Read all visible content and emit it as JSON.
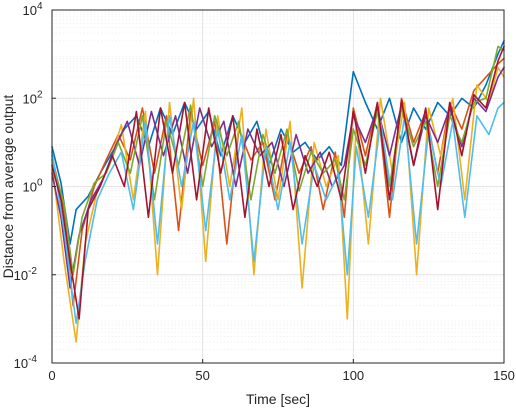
{
  "chart_data": {
    "type": "line",
    "title": "",
    "xlabel": "Time [sec]",
    "ylabel": "Distance from average output",
    "xlim": [
      0,
      150
    ],
    "ylim": [
      0.0001,
      10000
    ],
    "y_scale": "log",
    "grid": true,
    "minor_grid": true,
    "x_ticks": [
      0,
      50,
      100,
      150
    ],
    "x_tick_labels": [
      "0",
      "50",
      "100",
      "150"
    ],
    "y_ticks": [
      0.0001,
      0.01,
      1,
      100,
      10000
    ],
    "y_tick_labels": [
      {
        "base": "10",
        "exp": "-4"
      },
      {
        "base": "10",
        "exp": "-2"
      },
      {
        "base": "10",
        "exp": "0"
      },
      {
        "base": "10",
        "exp": "2"
      },
      {
        "base": "10",
        "exp": "4"
      }
    ],
    "series": [
      {
        "color": "#0072BD",
        "values": [
          [
            0,
            8
          ],
          [
            3,
            1.2
          ],
          [
            6,
            0.05
          ],
          [
            8,
            0.3
          ],
          [
            12,
            0.6
          ],
          [
            16,
            2
          ],
          [
            20,
            6
          ],
          [
            24,
            20
          ],
          [
            28,
            40
          ],
          [
            32,
            8
          ],
          [
            36,
            60
          ],
          [
            40,
            15
          ],
          [
            44,
            80
          ],
          [
            48,
            20
          ],
          [
            52,
            50
          ],
          [
            56,
            5
          ],
          [
            60,
            40
          ],
          [
            64,
            10
          ],
          [
            68,
            30
          ],
          [
            72,
            3
          ],
          [
            76,
            20
          ],
          [
            80,
            6
          ],
          [
            84,
            10
          ],
          [
            88,
            4
          ],
          [
            92,
            8
          ],
          [
            96,
            3
          ],
          [
            100,
            400
          ],
          [
            104,
            80
          ],
          [
            108,
            20
          ],
          [
            112,
            100
          ],
          [
            116,
            10
          ],
          [
            120,
            60
          ],
          [
            124,
            20
          ],
          [
            128,
            80
          ],
          [
            132,
            40
          ],
          [
            136,
            100
          ],
          [
            140,
            60
          ],
          [
            144,
            200
          ],
          [
            148,
            1000
          ],
          [
            150,
            2000
          ]
        ]
      },
      {
        "color": "#D95319",
        "values": [
          [
            0,
            5
          ],
          [
            4,
            0.3
          ],
          [
            7,
            0.002
          ],
          [
            10,
            0.1
          ],
          [
            14,
            1
          ],
          [
            18,
            4
          ],
          [
            22,
            15
          ],
          [
            26,
            4
          ],
          [
            30,
            60
          ],
          [
            34,
            2
          ],
          [
            38,
            40
          ],
          [
            42,
            0.1
          ],
          [
            46,
            50
          ],
          [
            50,
            3
          ],
          [
            54,
            30
          ],
          [
            58,
            0.05
          ],
          [
            62,
            20
          ],
          [
            66,
            4
          ],
          [
            70,
            10
          ],
          [
            74,
            0.5
          ],
          [
            78,
            15
          ],
          [
            82,
            2
          ],
          [
            86,
            8
          ],
          [
            90,
            0.3
          ],
          [
            94,
            6
          ],
          [
            97,
            0.2
          ],
          [
            100,
            60
          ],
          [
            104,
            5
          ],
          [
            108,
            80
          ],
          [
            112,
            0.2
          ],
          [
            116,
            100
          ],
          [
            120,
            10
          ],
          [
            124,
            50
          ],
          [
            128,
            2
          ],
          [
            132,
            80
          ],
          [
            136,
            20
          ],
          [
            140,
            150
          ],
          [
            144,
            300
          ],
          [
            148,
            600
          ],
          [
            150,
            800
          ]
        ]
      },
      {
        "color": "#EDB120",
        "values": [
          [
            0,
            3
          ],
          [
            4,
            0.02
          ],
          [
            8,
            0.0003
          ],
          [
            11,
            0.05
          ],
          [
            15,
            0.8
          ],
          [
            19,
            3
          ],
          [
            23,
            25
          ],
          [
            27,
            0.5
          ],
          [
            31,
            50
          ],
          [
            35,
            0.01
          ],
          [
            39,
            80
          ],
          [
            43,
            0.3
          ],
          [
            47,
            100
          ],
          [
            51,
            0.02
          ],
          [
            55,
            40
          ],
          [
            59,
            1
          ],
          [
            63,
            60
          ],
          [
            67,
            0.01
          ],
          [
            71,
            20
          ],
          [
            75,
            0.5
          ],
          [
            79,
            30
          ],
          [
            83,
            0.005
          ],
          [
            87,
            10
          ],
          [
            91,
            1
          ],
          [
            95,
            5
          ],
          [
            98,
            0.001
          ],
          [
            101,
            30
          ],
          [
            105,
            0.05
          ],
          [
            109,
            100
          ],
          [
            113,
            2
          ],
          [
            117,
            80
          ],
          [
            121,
            0.01
          ],
          [
            125,
            60
          ],
          [
            129,
            5
          ],
          [
            133,
            100
          ],
          [
            137,
            0.5
          ],
          [
            141,
            200
          ],
          [
            145,
            80
          ],
          [
            148,
            500
          ],
          [
            150,
            300
          ]
        ]
      },
      {
        "color": "#7E2F8E",
        "values": [
          [
            0,
            2
          ],
          [
            3,
            0.2
          ],
          [
            6,
            0.005
          ],
          [
            9,
            0.08
          ],
          [
            13,
            0.5
          ],
          [
            17,
            1.5
          ],
          [
            21,
            8
          ],
          [
            25,
            30
          ],
          [
            29,
            3
          ],
          [
            33,
            50
          ],
          [
            37,
            5
          ],
          [
            41,
            40
          ],
          [
            45,
            2
          ],
          [
            49,
            60
          ],
          [
            53,
            8
          ],
          [
            57,
            30
          ],
          [
            61,
            1
          ],
          [
            65,
            20
          ],
          [
            69,
            5
          ],
          [
            73,
            10
          ],
          [
            77,
            1
          ],
          [
            81,
            15
          ],
          [
            85,
            2
          ],
          [
            89,
            6
          ],
          [
            93,
            1
          ],
          [
            97,
            3
          ],
          [
            100,
            40
          ],
          [
            104,
            10
          ],
          [
            108,
            60
          ],
          [
            112,
            5
          ],
          [
            116,
            70
          ],
          [
            120,
            3
          ],
          [
            124,
            40
          ],
          [
            128,
            10
          ],
          [
            132,
            60
          ],
          [
            136,
            8
          ],
          [
            140,
            100
          ],
          [
            144,
            50
          ],
          [
            148,
            300
          ],
          [
            150,
            500
          ]
        ]
      },
      {
        "color": "#77AC30",
        "values": [
          [
            0,
            4
          ],
          [
            4,
            0.4
          ],
          [
            7,
            0.01
          ],
          [
            10,
            0.2
          ],
          [
            14,
            1.2
          ],
          [
            18,
            2
          ],
          [
            22,
            10
          ],
          [
            26,
            2
          ],
          [
            30,
            40
          ],
          [
            34,
            0.5
          ],
          [
            38,
            30
          ],
          [
            42,
            3
          ],
          [
            46,
            70
          ],
          [
            50,
            1
          ],
          [
            54,
            40
          ],
          [
            58,
            5
          ],
          [
            62,
            30
          ],
          [
            66,
            0.5
          ],
          [
            70,
            15
          ],
          [
            74,
            2
          ],
          [
            78,
            20
          ],
          [
            82,
            0.8
          ],
          [
            86,
            6
          ],
          [
            90,
            2
          ],
          [
            94,
            4
          ],
          [
            97,
            0.5
          ],
          [
            100,
            20
          ],
          [
            104,
            3
          ],
          [
            108,
            50
          ],
          [
            112,
            1
          ],
          [
            116,
            60
          ],
          [
            120,
            8
          ],
          [
            124,
            30
          ],
          [
            128,
            1
          ],
          [
            132,
            40
          ],
          [
            136,
            10
          ],
          [
            140,
            80
          ],
          [
            144,
            100
          ],
          [
            148,
            1500
          ],
          [
            150,
            1200
          ]
        ]
      },
      {
        "color": "#4DBEEE",
        "values": [
          [
            0,
            6
          ],
          [
            4,
            0.1
          ],
          [
            8,
            0.0008
          ],
          [
            11,
            0.02
          ],
          [
            15,
            0.5
          ],
          [
            19,
            2
          ],
          [
            23,
            6
          ],
          [
            27,
            0.3
          ],
          [
            31,
            30
          ],
          [
            35,
            0.05
          ],
          [
            39,
            40
          ],
          [
            43,
            1
          ],
          [
            47,
            30
          ],
          [
            51,
            0.1
          ],
          [
            55,
            20
          ],
          [
            59,
            0.5
          ],
          [
            63,
            15
          ],
          [
            67,
            0.02
          ],
          [
            71,
            8
          ],
          [
            75,
            0.3
          ],
          [
            79,
            10
          ],
          [
            83,
            0.05
          ],
          [
            87,
            3
          ],
          [
            91,
            0.5
          ],
          [
            95,
            2
          ],
          [
            98,
            0.01
          ],
          [
            101,
            8
          ],
          [
            105,
            0.2
          ],
          [
            109,
            30
          ],
          [
            113,
            0.5
          ],
          [
            117,
            40
          ],
          [
            121,
            0.05
          ],
          [
            125,
            20
          ],
          [
            129,
            1
          ],
          [
            133,
            30
          ],
          [
            137,
            0.2
          ],
          [
            141,
            40
          ],
          [
            145,
            15
          ],
          [
            148,
            60
          ],
          [
            150,
            80
          ]
        ]
      },
      {
        "color": "#A2142F",
        "values": [
          [
            0,
            3
          ],
          [
            3,
            0.5
          ],
          [
            6,
            0.02
          ],
          [
            9,
            0.001
          ],
          [
            12,
            0.3
          ],
          [
            16,
            1
          ],
          [
            20,
            5
          ],
          [
            24,
            1
          ],
          [
            28,
            50
          ],
          [
            32,
            0.2
          ],
          [
            36,
            60
          ],
          [
            40,
            2
          ],
          [
            44,
            80
          ],
          [
            48,
            0.5
          ],
          [
            52,
            60
          ],
          [
            56,
            2
          ],
          [
            60,
            40
          ],
          [
            64,
            0.2
          ],
          [
            68,
            20
          ],
          [
            72,
            1
          ],
          [
            76,
            15
          ],
          [
            80,
            0.3
          ],
          [
            84,
            5
          ],
          [
            88,
            1
          ],
          [
            92,
            6
          ],
          [
            96,
            0.5
          ],
          [
            100,
            50
          ],
          [
            104,
            2
          ],
          [
            108,
            80
          ],
          [
            112,
            0.5
          ],
          [
            116,
            90
          ],
          [
            120,
            3
          ],
          [
            124,
            60
          ],
          [
            128,
            0.3
          ],
          [
            132,
            80
          ],
          [
            136,
            5
          ],
          [
            140,
            120
          ],
          [
            144,
            60
          ],
          [
            148,
            700
          ],
          [
            150,
            1500
          ]
        ]
      }
    ]
  }
}
